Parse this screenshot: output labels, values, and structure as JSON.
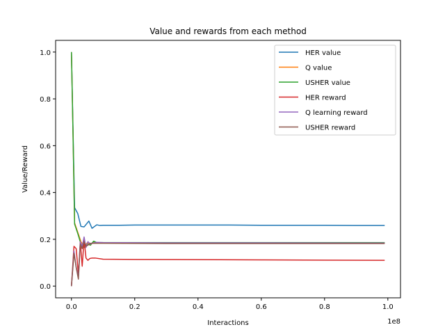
{
  "chart_data": {
    "type": "line",
    "title": "Value and rewards from each method",
    "xlabel": "Interactions",
    "ylabel": "Value/Reward",
    "x_offset_label": "1e8",
    "x_scale": 100000000,
    "xlim": [
      -0.05,
      1.04
    ],
    "ylim": [
      -0.05,
      1.05
    ],
    "x_ticks": [
      0.0,
      0.2,
      0.4,
      0.6,
      0.8,
      1.0
    ],
    "x_tick_labels": [
      "0.0",
      "0.2",
      "0.4",
      "0.6",
      "0.8",
      "1.0"
    ],
    "y_ticks": [
      0.0,
      0.2,
      0.4,
      0.6,
      0.8,
      1.0
    ],
    "y_tick_labels": [
      "0.0",
      "0.2",
      "0.4",
      "0.6",
      "0.8",
      "1.0"
    ],
    "grid": false,
    "legend_position": "top-right",
    "series": [
      {
        "name": "HER value",
        "color": "#1f77b4",
        "x": [
          0.0,
          0.01,
          0.02,
          0.03,
          0.04,
          0.055,
          0.065,
          0.08,
          0.09,
          0.1,
          0.15,
          0.2,
          0.3,
          0.4,
          0.5,
          0.6,
          0.7,
          0.8,
          0.9,
          0.99
        ],
        "y": [
          1.0,
          0.335,
          0.31,
          0.255,
          0.253,
          0.278,
          0.247,
          0.262,
          0.259,
          0.26,
          0.26,
          0.261,
          0.261,
          0.261,
          0.261,
          0.26,
          0.26,
          0.26,
          0.259,
          0.259
        ]
      },
      {
        "name": "Q value",
        "color": "#ff7f0e",
        "x": [
          0.0,
          0.005,
          0.01,
          0.02,
          0.03,
          0.04,
          0.05,
          0.06,
          0.07,
          0.08,
          0.1,
          0.2,
          0.4,
          0.6,
          0.8,
          0.99
        ],
        "y": [
          1.0,
          0.65,
          0.27,
          0.23,
          0.19,
          0.17,
          0.185,
          0.175,
          0.19,
          0.185,
          0.185,
          0.185,
          0.185,
          0.185,
          0.184,
          0.184
        ]
      },
      {
        "name": "USHER value",
        "color": "#2ca02c",
        "x": [
          0.0,
          0.005,
          0.01,
          0.02,
          0.03,
          0.04,
          0.05,
          0.06,
          0.07,
          0.08,
          0.1,
          0.2,
          0.4,
          0.6,
          0.8,
          0.99
        ],
        "y": [
          1.0,
          0.65,
          0.265,
          0.225,
          0.18,
          0.165,
          0.18,
          0.175,
          0.192,
          0.186,
          0.186,
          0.186,
          0.186,
          0.186,
          0.186,
          0.186
        ]
      },
      {
        "name": "HER reward",
        "color": "#d62728",
        "x": [
          0.0,
          0.008,
          0.015,
          0.022,
          0.028,
          0.034,
          0.04,
          0.046,
          0.052,
          0.058,
          0.065,
          0.075,
          0.1,
          0.2,
          0.4,
          0.6,
          0.8,
          0.99
        ],
        "y": [
          0.0,
          0.17,
          0.16,
          0.05,
          0.19,
          0.085,
          0.2,
          0.12,
          0.11,
          0.118,
          0.12,
          0.12,
          0.115,
          0.114,
          0.113,
          0.112,
          0.111,
          0.11
        ]
      },
      {
        "name": "Q learning reward",
        "color": "#9467bd",
        "x": [
          0.0,
          0.008,
          0.015,
          0.022,
          0.028,
          0.034,
          0.04,
          0.046,
          0.052,
          0.06,
          0.07,
          0.08,
          0.1,
          0.3,
          0.6,
          0.99
        ],
        "y": [
          0.0,
          0.15,
          0.08,
          0.04,
          0.19,
          0.17,
          0.21,
          0.165,
          0.19,
          0.18,
          0.185,
          0.187,
          0.186,
          0.185,
          0.185,
          0.184
        ]
      },
      {
        "name": "USHER reward",
        "color": "#8c564b",
        "x": [
          0.0,
          0.008,
          0.015,
          0.022,
          0.028,
          0.034,
          0.04,
          0.046,
          0.052,
          0.06,
          0.07,
          0.08,
          0.1,
          0.3,
          0.6,
          0.99
        ],
        "y": [
          0.0,
          0.14,
          0.08,
          0.03,
          0.18,
          0.16,
          0.19,
          0.17,
          0.175,
          0.183,
          0.183,
          0.183,
          0.183,
          0.182,
          0.182,
          0.182
        ]
      }
    ]
  }
}
